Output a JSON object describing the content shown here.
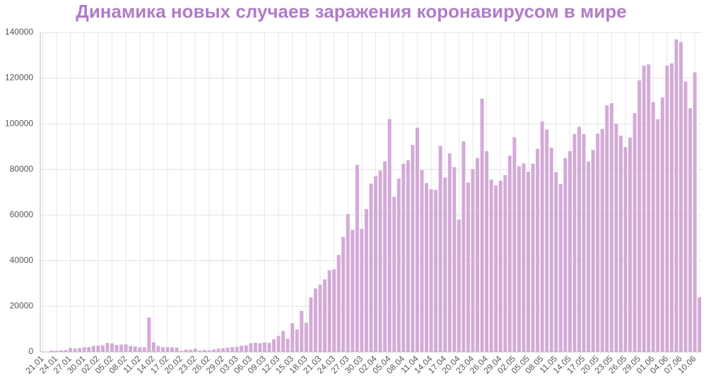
{
  "chart_data": {
    "type": "bar",
    "title": "Динамика новых случаев заражения коронавирусом в мире",
    "color": "#d3aad7",
    "grid": true,
    "ylim": [
      0,
      140000
    ],
    "yticks": [
      0,
      20000,
      40000,
      60000,
      80000,
      100000,
      120000,
      140000
    ],
    "categories": [
      "21.01",
      null,
      null,
      "24.01",
      null,
      null,
      "27.01",
      null,
      null,
      "30.01",
      null,
      null,
      "02.02",
      null,
      null,
      "05.02",
      null,
      null,
      "08.02",
      null,
      null,
      "11.02",
      null,
      null,
      "14.02",
      null,
      null,
      "17.02",
      null,
      null,
      "20.02",
      null,
      null,
      "23.02",
      null,
      null,
      "26.02",
      null,
      null,
      "29.02",
      null,
      null,
      "03.03",
      null,
      null,
      "06.03",
      null,
      null,
      "09.03",
      null,
      null,
      "12.03",
      null,
      null,
      "15.03",
      null,
      null,
      "18.03",
      null,
      null,
      "21.03",
      null,
      null,
      "24.03",
      null,
      null,
      "27.03",
      null,
      null,
      "30.03",
      null,
      null,
      "02.04",
      null,
      null,
      "05.04",
      null,
      null,
      "08.04",
      null,
      null,
      "11.04",
      null,
      null,
      "14.04",
      null,
      null,
      "17.04",
      null,
      null,
      "20.04",
      null,
      null,
      "23.04",
      null,
      null,
      "26.04",
      null,
      null,
      "29.04",
      null,
      null,
      "02.05",
      null,
      null,
      "05.05",
      null,
      null,
      "08.05",
      null,
      null,
      "11.05",
      null,
      null,
      "14.05",
      null,
      null,
      "17.05",
      null,
      null,
      "20.05",
      null,
      null,
      "23.05",
      null,
      null,
      "26.05",
      null,
      null,
      "29.05",
      null,
      null,
      "01.06",
      null,
      null,
      "04.06",
      null,
      null,
      "07.06",
      null,
      null,
      "10.06",
      null
    ],
    "values": [
      150,
      100,
      600,
      500,
      700,
      800,
      1700,
      1500,
      1700,
      2000,
      2100,
      2600,
      2800,
      2900,
      3900,
      3700,
      3100,
      3200,
      3300,
      2600,
      2400,
      2000,
      2000,
      15100,
      4200,
      2600,
      2100,
      2100,
      2000,
      1900,
      500,
      1000,
      1000,
      1400,
      600,
      900,
      700,
      1100,
      1400,
      1600,
      1900,
      2100,
      2200,
      2700,
      2900,
      3800,
      4000,
      3800,
      4200,
      4000,
      5500,
      7000,
      9200,
      5800,
      12600,
      9800,
      18000,
      12800,
      23800,
      27800,
      29500,
      31800,
      35800,
      36200,
      42500,
      50400,
      60400,
      53600,
      82000,
      54000,
      62600,
      73800,
      77000,
      79500,
      83500,
      102000,
      68000,
      76000,
      82500,
      84000,
      90700,
      98300,
      79700,
      74000,
      71300,
      71000,
      90300,
      76400,
      87000,
      81000,
      58000,
      92300,
      74300,
      80100,
      85000,
      111000,
      88000,
      75500,
      73000,
      75000,
      77500,
      86000,
      94000,
      81400,
      82600,
      79000,
      82500,
      89000,
      101000,
      97500,
      89500,
      78800,
      73600,
      85000,
      88000,
      95500,
      98700,
      95500,
      83400,
      88500,
      95700,
      97800,
      108000,
      109000,
      100000,
      94800,
      89800,
      93900,
      104700,
      119000,
      125500,
      126000,
      109500,
      102000,
      111500,
      125500,
      126500,
      137000,
      135800,
      118500,
      106800,
      122500,
      24000
    ]
  }
}
